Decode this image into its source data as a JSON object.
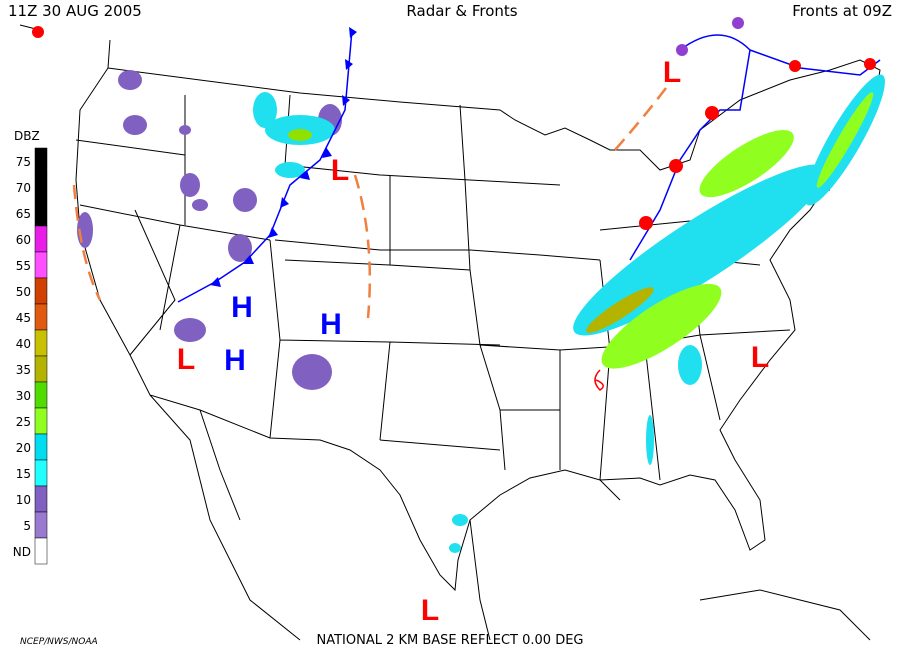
{
  "header": {
    "left": "11Z  30 AUG  2005",
    "center": "Radar & Fronts",
    "right": "Fronts at 09Z"
  },
  "legend": {
    "title": "DBZ",
    "levels": [
      {
        "label": "75",
        "color": "#000000"
      },
      {
        "label": "70",
        "color": "#000000"
      },
      {
        "label": "65",
        "color": "#000000"
      },
      {
        "label": "60",
        "color": "#e81ee8"
      },
      {
        "label": "55",
        "color": "#ff50ff"
      },
      {
        "label": "50",
        "color": "#d04000"
      },
      {
        "label": "45",
        "color": "#e05a10"
      },
      {
        "label": "40",
        "color": "#c8c000"
      },
      {
        "label": "35",
        "color": "#b4b400"
      },
      {
        "label": "30",
        "color": "#50dc00"
      },
      {
        "label": "25",
        "color": "#90ff20"
      },
      {
        "label": "20",
        "color": "#00dcf0"
      },
      {
        "label": "15",
        "color": "#20ffff"
      },
      {
        "label": "10",
        "color": "#8060c0"
      },
      {
        "label": "5",
        "color": "#9a7ad0"
      },
      {
        "label": "ND",
        "color": "#ffffff"
      }
    ]
  },
  "pressure_centers": [
    "L",
    "H",
    "H",
    "L",
    "H",
    "L",
    "L",
    "L"
  ],
  "footer": {
    "left": "NCEP/NWS/NOAA",
    "center": "NATIONAL 2 KM BASE REFLECT 0.00 DEG"
  }
}
